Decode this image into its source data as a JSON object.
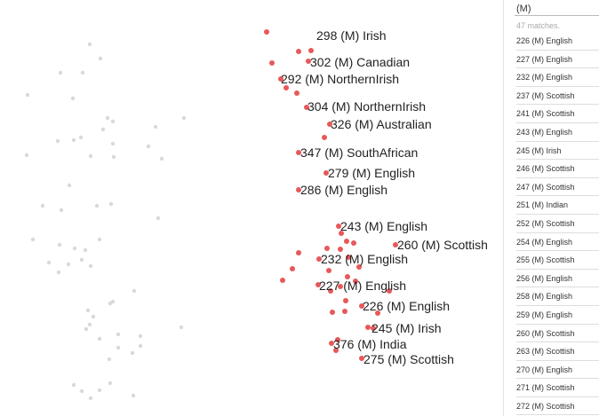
{
  "search": {
    "value": "(M)",
    "count_text": "47 matches."
  },
  "colors": {
    "highlight": "#e8585a",
    "faded": "#d9d9d9",
    "label": "#222222"
  },
  "plot_labels": [
    "298 (M) Irish",
    "302 (M) Canadian",
    "292 (M) NorthernIrish",
    "304 (M) NorthernIrish",
    "326 (M) Australian",
    "347 (M) SouthAfrican",
    "279 (M) English",
    "286 (M) English",
    "243 (M) English",
    "260 (M) Scottish",
    "232 (M) English",
    "227 (M) English",
    "226 (M) English",
    "245 (M) Irish",
    "376 (M) India",
    "275 (M) Scottish"
  ],
  "results": [
    "226 (M) English",
    "227 (M) English",
    "232 (M) English",
    "237 (M) Scottish",
    "241 (M) Scottish",
    "243 (M) English",
    "245 (M) Irish",
    "246 (M) Scottish",
    "247 (M) Scottish",
    "251 (M) Indian",
    "252 (M) Scottish",
    "254 (M) English",
    "255 (M) Scottish",
    "256 (M) English",
    "258 (M) English",
    "259 (M) English",
    "260 (M) Scottish",
    "263 (M) Scottish",
    "270 (M) English",
    "271 (M) Scottish",
    "272 (M) Scottish"
  ]
}
